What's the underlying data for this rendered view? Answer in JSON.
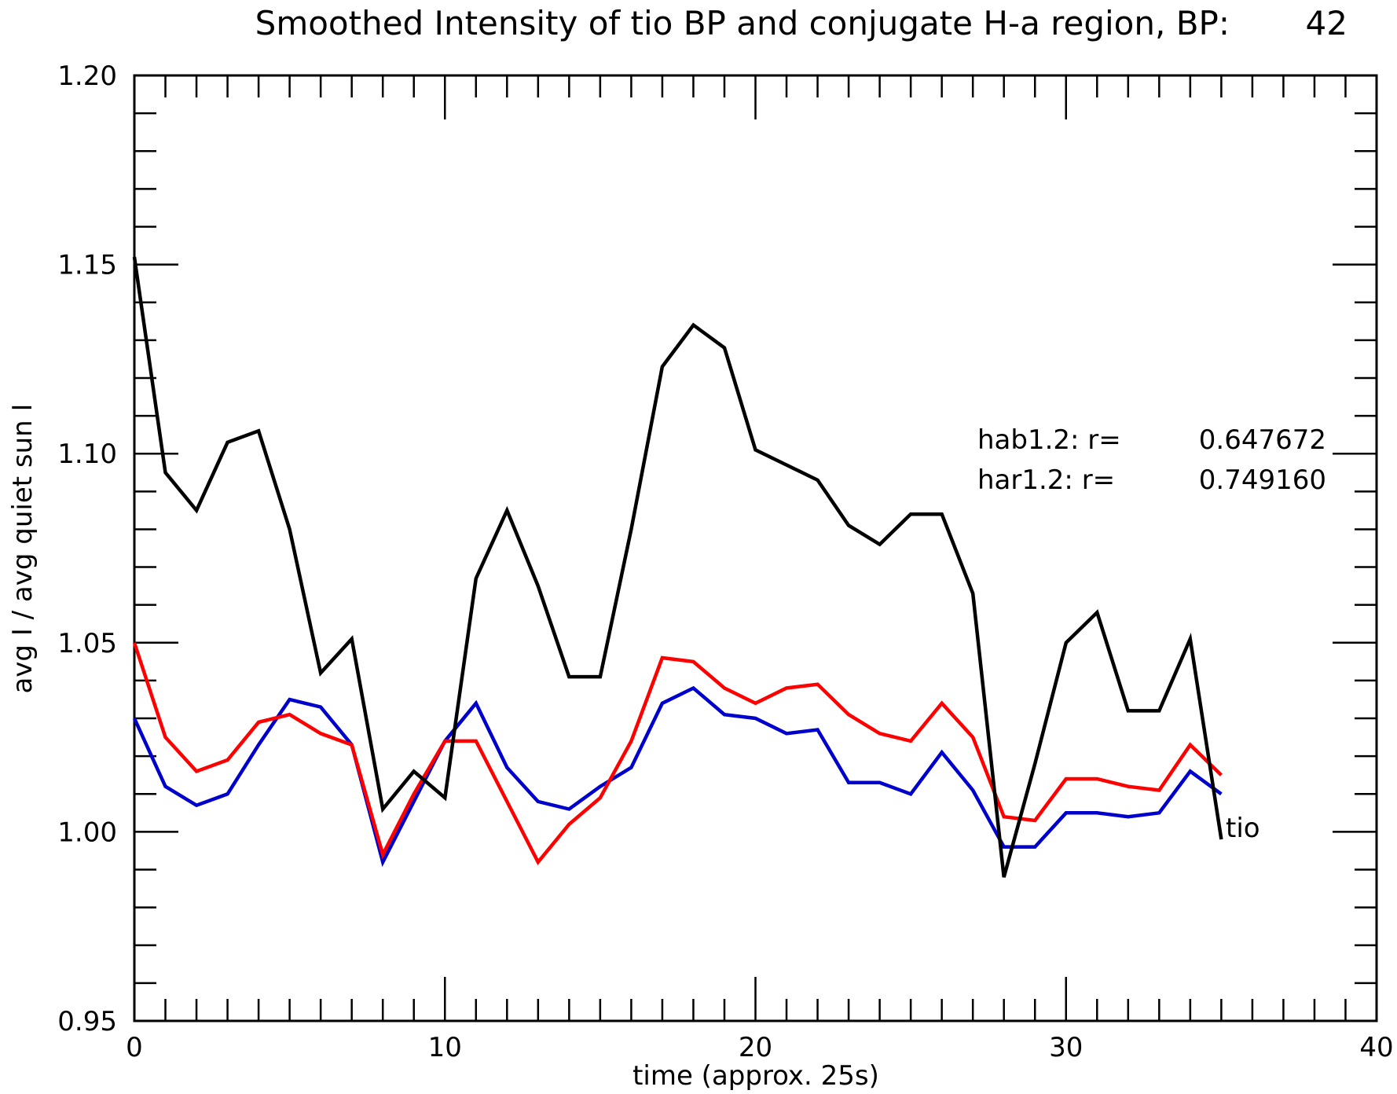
{
  "chart_data": {
    "type": "line",
    "title": "Smoothed Intensity of tio BP and conjugate H-a region, BP:",
    "title_value": "42",
    "xlabel": "time (approx. 25s)",
    "ylabel": "avg I / avg quiet sun I",
    "xlim": [
      0,
      40
    ],
    "ylim": [
      0.95,
      1.2
    ],
    "x_ticks": [
      "0",
      "10",
      "20",
      "30",
      "40"
    ],
    "y_ticks": [
      "0.95",
      "1.00",
      "1.05",
      "1.10",
      "1.15",
      "1.20"
    ],
    "grid": false,
    "annotations": [
      {
        "name": "hab1.2: r=",
        "value": "0.647672"
      },
      {
        "name": "har1.2: r=",
        "value": "0.749160"
      }
    ],
    "series_label": "tio",
    "x": [
      0,
      1,
      2,
      3,
      4,
      5,
      6,
      7,
      8,
      9,
      10,
      11,
      12,
      13,
      14,
      15,
      16,
      17,
      18,
      19,
      20,
      21,
      22,
      23,
      24,
      25,
      26,
      27,
      28,
      29,
      30,
      31,
      32,
      33,
      34,
      35
    ],
    "series": [
      {
        "color": "#000000",
        "values": [
          1.152,
          1.095,
          1.085,
          1.103,
          1.106,
          1.08,
          1.042,
          1.051,
          1.006,
          1.016,
          1.009,
          1.067,
          1.085,
          1.065,
          1.041,
          1.041,
          1.08,
          1.123,
          1.134,
          1.128,
          1.101,
          1.097,
          1.093,
          1.081,
          1.076,
          1.084,
          1.084,
          1.063,
          0.988,
          1.018,
          1.05,
          1.058,
          1.032,
          1.032,
          1.051,
          0.998
        ]
      },
      {
        "color": "#0000cc",
        "values": [
          1.03,
          1.012,
          1.007,
          1.01,
          1.023,
          1.035,
          1.033,
          1.023,
          0.992,
          1.008,
          1.024,
          1.034,
          1.017,
          1.008,
          1.006,
          1.012,
          1.017,
          1.034,
          1.038,
          1.031,
          1.03,
          1.026,
          1.027,
          1.013,
          1.013,
          1.01,
          1.021,
          1.011,
          0.996,
          0.996,
          1.005,
          1.005,
          1.004,
          1.005,
          1.016,
          1.01
        ]
      },
      {
        "color": "#ff0000",
        "values": [
          1.05,
          1.025,
          1.016,
          1.019,
          1.029,
          1.031,
          1.026,
          1.023,
          0.994,
          1.01,
          1.024,
          1.024,
          1.008,
          0.992,
          1.002,
          1.009,
          1.024,
          1.046,
          1.045,
          1.038,
          1.034,
          1.038,
          1.039,
          1.031,
          1.026,
          1.024,
          1.034,
          1.025,
          1.004,
          1.003,
          1.014,
          1.014,
          1.012,
          1.011,
          1.023,
          1.015
        ]
      }
    ]
  }
}
